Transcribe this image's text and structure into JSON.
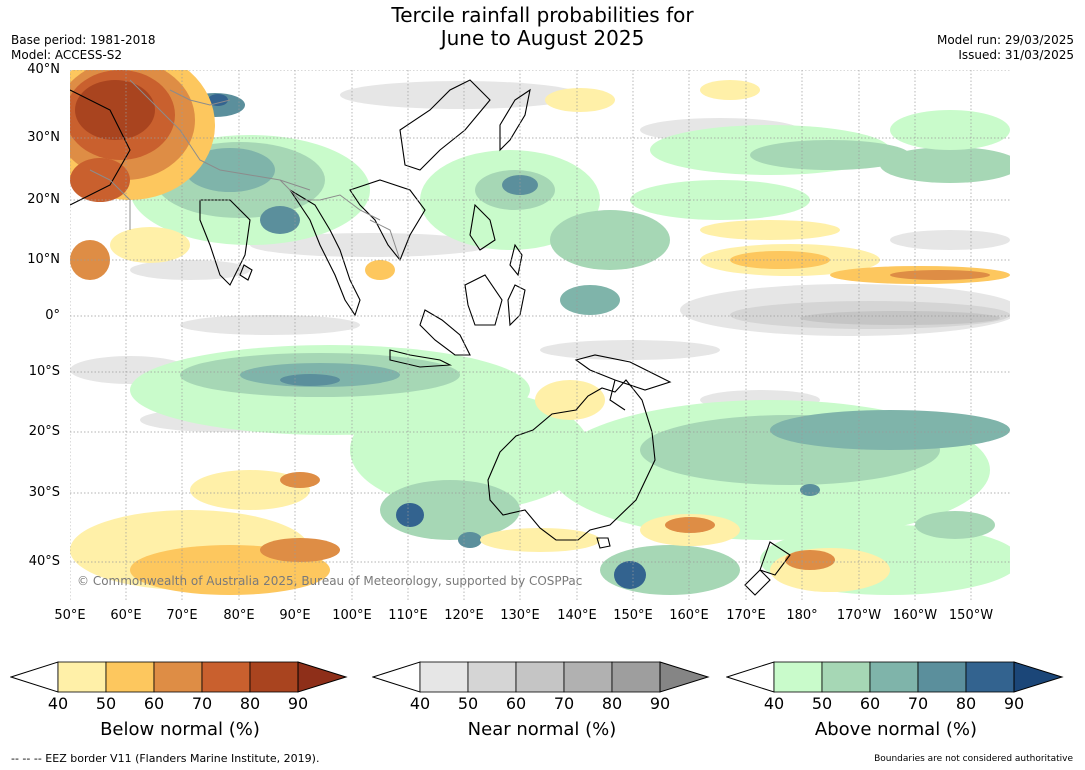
{
  "title": {
    "line1": "Tercile rainfall probabilities for",
    "line2": "June to August 2025"
  },
  "meta": {
    "base_period": "Base period: 1981-2018",
    "model": "Model: ACCESS-S2",
    "model_run": "Model run: 29/03/2025",
    "issued": "Issued: 31/03/2025"
  },
  "map": {
    "lat_labels": [
      "40°N",
      "30°N",
      "20°N",
      "10°N",
      "0°",
      "10°S",
      "20°S",
      "30°S",
      "40°S"
    ],
    "lon_labels": [
      "50°E",
      "60°E",
      "70°E",
      "80°E",
      "90°E",
      "100°E",
      "110°E",
      "120°E",
      "130°E",
      "140°E",
      "150°E",
      "160°E",
      "170°E",
      "180°",
      "170°W",
      "160°W",
      "150°W"
    ],
    "copyright": "© Commonwealth of Australia 2025, Bureau of Meteorology, supported by COSPPac",
    "colors": {
      "ocean_base": "#ffffff",
      "land_outline": "#000000",
      "border_grey": "#8c8c8c",
      "gridline": "#9a9a9a"
    }
  },
  "legends": [
    {
      "title": "Below normal (%)",
      "ticks": [
        "40",
        "50",
        "60",
        "70",
        "80",
        "90"
      ],
      "colors": [
        "#fff0a8",
        "#fdc75e",
        "#de8d45",
        "#c9602e",
        "#a9441f",
        "#8e2f19"
      ]
    },
    {
      "title": "Near normal (%)",
      "ticks": [
        "40",
        "50",
        "60",
        "70",
        "80",
        "90"
      ],
      "colors": [
        "#e6e6e6",
        "#d5d5d5",
        "#c5c5c5",
        "#b1b1b1",
        "#9e9e9e",
        "#858585"
      ]
    },
    {
      "title": "Above normal (%)",
      "ticks": [
        "40",
        "50",
        "60",
        "70",
        "80",
        "90"
      ],
      "colors": [
        "#c9fbcb",
        "#a6d7b5",
        "#7fb4aa",
        "#5b8f9c",
        "#33638f",
        "#1b4678"
      ]
    }
  ],
  "footer": {
    "eez": "--  --  -- EEZ border V11 (Flanders Marine Institute, 2019).",
    "disclaimer": "Boundaries are not considered authoritative"
  }
}
